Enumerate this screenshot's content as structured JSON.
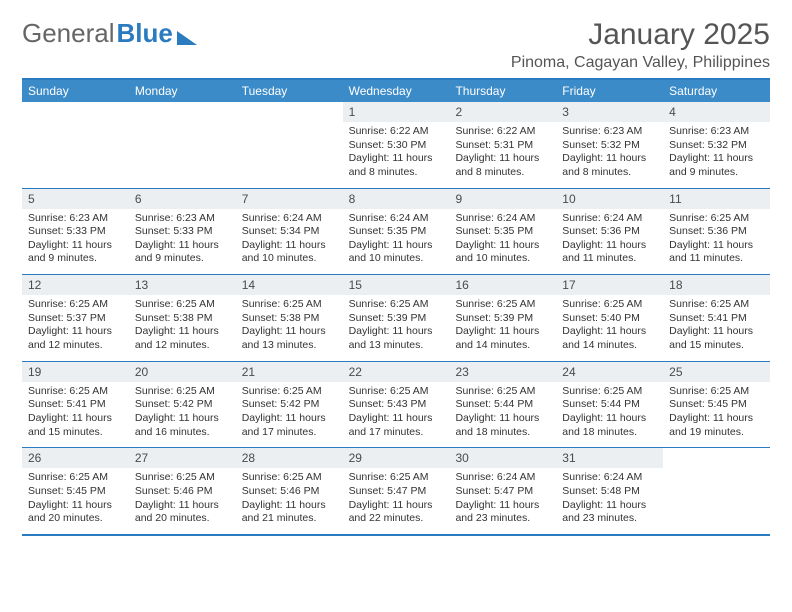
{
  "brand": {
    "part1": "General",
    "part2": "Blue"
  },
  "title": "January 2025",
  "location": "Pinoma, Cagayan Valley, Philippines",
  "colors": {
    "accent": "#3b8bc9",
    "border": "#2a7bbf",
    "daynum_bg": "#eceff1",
    "text": "#3a3a3a",
    "background": "#ffffff"
  },
  "days_of_week": [
    "Sunday",
    "Monday",
    "Tuesday",
    "Wednesday",
    "Thursday",
    "Friday",
    "Saturday"
  ],
  "weeks": [
    [
      {
        "empty": true
      },
      {
        "empty": true
      },
      {
        "empty": true
      },
      {
        "day": "1",
        "sunrise": "6:22 AM",
        "sunset": "5:30 PM",
        "daylight": "11 hours and 8 minutes."
      },
      {
        "day": "2",
        "sunrise": "6:22 AM",
        "sunset": "5:31 PM",
        "daylight": "11 hours and 8 minutes."
      },
      {
        "day": "3",
        "sunrise": "6:23 AM",
        "sunset": "5:32 PM",
        "daylight": "11 hours and 8 minutes."
      },
      {
        "day": "4",
        "sunrise": "6:23 AM",
        "sunset": "5:32 PM",
        "daylight": "11 hours and 9 minutes."
      }
    ],
    [
      {
        "day": "5",
        "sunrise": "6:23 AM",
        "sunset": "5:33 PM",
        "daylight": "11 hours and 9 minutes."
      },
      {
        "day": "6",
        "sunrise": "6:23 AM",
        "sunset": "5:33 PM",
        "daylight": "11 hours and 9 minutes."
      },
      {
        "day": "7",
        "sunrise": "6:24 AM",
        "sunset": "5:34 PM",
        "daylight": "11 hours and 10 minutes."
      },
      {
        "day": "8",
        "sunrise": "6:24 AM",
        "sunset": "5:35 PM",
        "daylight": "11 hours and 10 minutes."
      },
      {
        "day": "9",
        "sunrise": "6:24 AM",
        "sunset": "5:35 PM",
        "daylight": "11 hours and 10 minutes."
      },
      {
        "day": "10",
        "sunrise": "6:24 AM",
        "sunset": "5:36 PM",
        "daylight": "11 hours and 11 minutes."
      },
      {
        "day": "11",
        "sunrise": "6:25 AM",
        "sunset": "5:36 PM",
        "daylight": "11 hours and 11 minutes."
      }
    ],
    [
      {
        "day": "12",
        "sunrise": "6:25 AM",
        "sunset": "5:37 PM",
        "daylight": "11 hours and 12 minutes."
      },
      {
        "day": "13",
        "sunrise": "6:25 AM",
        "sunset": "5:38 PM",
        "daylight": "11 hours and 12 minutes."
      },
      {
        "day": "14",
        "sunrise": "6:25 AM",
        "sunset": "5:38 PM",
        "daylight": "11 hours and 13 minutes."
      },
      {
        "day": "15",
        "sunrise": "6:25 AM",
        "sunset": "5:39 PM",
        "daylight": "11 hours and 13 minutes."
      },
      {
        "day": "16",
        "sunrise": "6:25 AM",
        "sunset": "5:39 PM",
        "daylight": "11 hours and 14 minutes."
      },
      {
        "day": "17",
        "sunrise": "6:25 AM",
        "sunset": "5:40 PM",
        "daylight": "11 hours and 14 minutes."
      },
      {
        "day": "18",
        "sunrise": "6:25 AM",
        "sunset": "5:41 PM",
        "daylight": "11 hours and 15 minutes."
      }
    ],
    [
      {
        "day": "19",
        "sunrise": "6:25 AM",
        "sunset": "5:41 PM",
        "daylight": "11 hours and 15 minutes."
      },
      {
        "day": "20",
        "sunrise": "6:25 AM",
        "sunset": "5:42 PM",
        "daylight": "11 hours and 16 minutes."
      },
      {
        "day": "21",
        "sunrise": "6:25 AM",
        "sunset": "5:42 PM",
        "daylight": "11 hours and 17 minutes."
      },
      {
        "day": "22",
        "sunrise": "6:25 AM",
        "sunset": "5:43 PM",
        "daylight": "11 hours and 17 minutes."
      },
      {
        "day": "23",
        "sunrise": "6:25 AM",
        "sunset": "5:44 PM",
        "daylight": "11 hours and 18 minutes."
      },
      {
        "day": "24",
        "sunrise": "6:25 AM",
        "sunset": "5:44 PM",
        "daylight": "11 hours and 18 minutes."
      },
      {
        "day": "25",
        "sunrise": "6:25 AM",
        "sunset": "5:45 PM",
        "daylight": "11 hours and 19 minutes."
      }
    ],
    [
      {
        "day": "26",
        "sunrise": "6:25 AM",
        "sunset": "5:45 PM",
        "daylight": "11 hours and 20 minutes."
      },
      {
        "day": "27",
        "sunrise": "6:25 AM",
        "sunset": "5:46 PM",
        "daylight": "11 hours and 20 minutes."
      },
      {
        "day": "28",
        "sunrise": "6:25 AM",
        "sunset": "5:46 PM",
        "daylight": "11 hours and 21 minutes."
      },
      {
        "day": "29",
        "sunrise": "6:25 AM",
        "sunset": "5:47 PM",
        "daylight": "11 hours and 22 minutes."
      },
      {
        "day": "30",
        "sunrise": "6:24 AM",
        "sunset": "5:47 PM",
        "daylight": "11 hours and 23 minutes."
      },
      {
        "day": "31",
        "sunrise": "6:24 AM",
        "sunset": "5:48 PM",
        "daylight": "11 hours and 23 minutes."
      },
      {
        "empty": true
      }
    ]
  ],
  "labels": {
    "sunrise": "Sunrise:",
    "sunset": "Sunset:",
    "daylight": "Daylight:"
  }
}
